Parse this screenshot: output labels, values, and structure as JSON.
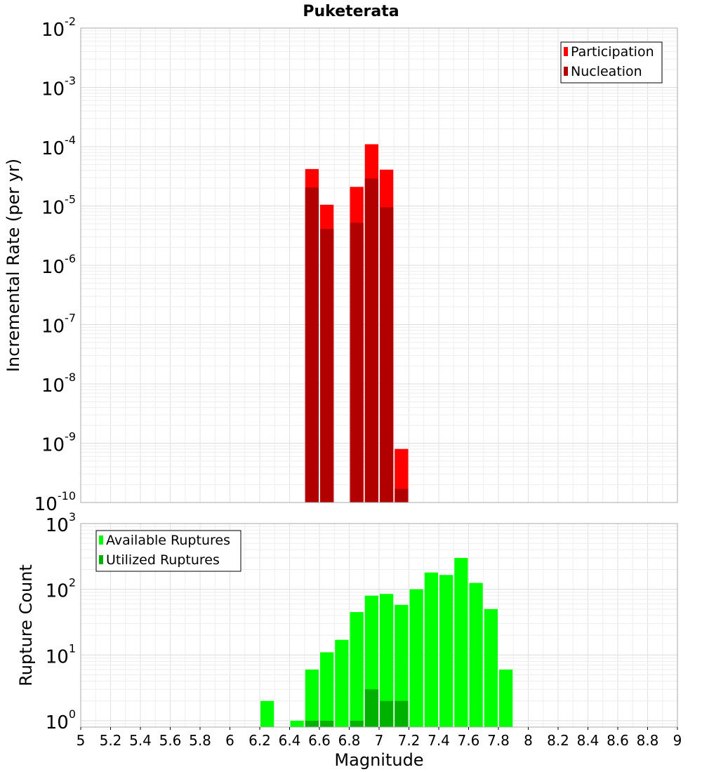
{
  "chart_data": [
    {
      "type": "bar",
      "title": "Puketerata",
      "xlabel": "",
      "ylabel": "Incremental Rate (per yr)",
      "yscale": "log",
      "ylim": [
        1e-10,
        0.01
      ],
      "xlim": [
        5,
        9
      ],
      "y_ticks": [
        {
          "base": "10",
          "exp": "-10",
          "value": 1e-10
        },
        {
          "base": "10",
          "exp": "-9",
          "value": 1e-09
        },
        {
          "base": "10",
          "exp": "-8",
          "value": 1e-08
        },
        {
          "base": "10",
          "exp": "-7",
          "value": 1e-07
        },
        {
          "base": "10",
          "exp": "-6",
          "value": 1e-06
        },
        {
          "base": "10",
          "exp": "-5",
          "value": 1e-05
        },
        {
          "base": "10",
          "exp": "-4",
          "value": 0.0001
        },
        {
          "base": "10",
          "exp": "-3",
          "value": 0.001
        },
        {
          "base": "10",
          "exp": "-2",
          "value": 0.01
        }
      ],
      "bin_width": 0.1,
      "grid": true,
      "legend_position": "top-right",
      "series": [
        {
          "name": "Participation",
          "color": "#ff0000",
          "points": [
            {
              "x": 6.55,
              "y": 4.2e-05
            },
            {
              "x": 6.65,
              "y": 1.05e-05
            },
            {
              "x": 6.85,
              "y": 2.1e-05
            },
            {
              "x": 6.95,
              "y": 0.00011
            },
            {
              "x": 7.05,
              "y": 4.1e-05
            },
            {
              "x": 7.15,
              "y": 8e-10
            }
          ]
        },
        {
          "name": "Nucleation",
          "color": "#b20000",
          "points": [
            {
              "x": 6.55,
              "y": 2.05e-05
            },
            {
              "x": 6.65,
              "y": 4.1e-06
            },
            {
              "x": 6.85,
              "y": 5.2e-06
            },
            {
              "x": 6.95,
              "y": 2.9e-05
            },
            {
              "x": 7.05,
              "y": 9.5e-06
            },
            {
              "x": 7.15,
              "y": 1.7e-10
            }
          ]
        }
      ]
    },
    {
      "type": "bar",
      "title": "",
      "xlabel": "Magnitude",
      "ylabel": "Rupture Count",
      "yscale": "log",
      "ylim": [
        0.8,
        1000
      ],
      "xlim": [
        5,
        9
      ],
      "y_ticks": [
        {
          "base": "10",
          "exp": "0",
          "value": 1
        },
        {
          "base": "10",
          "exp": "1",
          "value": 10
        },
        {
          "base": "10",
          "exp": "2",
          "value": 100
        },
        {
          "base": "10",
          "exp": "3",
          "value": 1000
        }
      ],
      "x_ticks": [
        "5",
        "5.2",
        "5.4",
        "5.6",
        "5.8",
        "6",
        "6.2",
        "6.4",
        "6.6",
        "6.8",
        "7",
        "7.2",
        "7.4",
        "7.6",
        "7.8",
        "8",
        "8.2",
        "8.4",
        "8.6",
        "8.8",
        "9"
      ],
      "bin_width": 0.1,
      "grid": true,
      "legend_position": "top-left",
      "series": [
        {
          "name": "Available Ruptures",
          "color": "#00ff00",
          "points": [
            {
              "x": 6.25,
              "y": 2
            },
            {
              "x": 6.45,
              "y": 1
            },
            {
              "x": 6.55,
              "y": 6
            },
            {
              "x": 6.65,
              "y": 11
            },
            {
              "x": 6.75,
              "y": 17
            },
            {
              "x": 6.85,
              "y": 45
            },
            {
              "x": 6.95,
              "y": 80
            },
            {
              "x": 7.05,
              "y": 85
            },
            {
              "x": 7.15,
              "y": 58
            },
            {
              "x": 7.25,
              "y": 100
            },
            {
              "x": 7.35,
              "y": 180
            },
            {
              "x": 7.45,
              "y": 165
            },
            {
              "x": 7.55,
              "y": 300
            },
            {
              "x": 7.65,
              "y": 125
            },
            {
              "x": 7.75,
              "y": 50
            },
            {
              "x": 7.85,
              "y": 6
            }
          ]
        },
        {
          "name": "Utilized Ruptures",
          "color": "#00b200",
          "points": [
            {
              "x": 6.55,
              "y": 1
            },
            {
              "x": 6.65,
              "y": 1
            },
            {
              "x": 6.85,
              "y": 1
            },
            {
              "x": 6.95,
              "y": 3
            },
            {
              "x": 7.05,
              "y": 2
            },
            {
              "x": 7.15,
              "y": 2
            }
          ]
        }
      ]
    }
  ]
}
